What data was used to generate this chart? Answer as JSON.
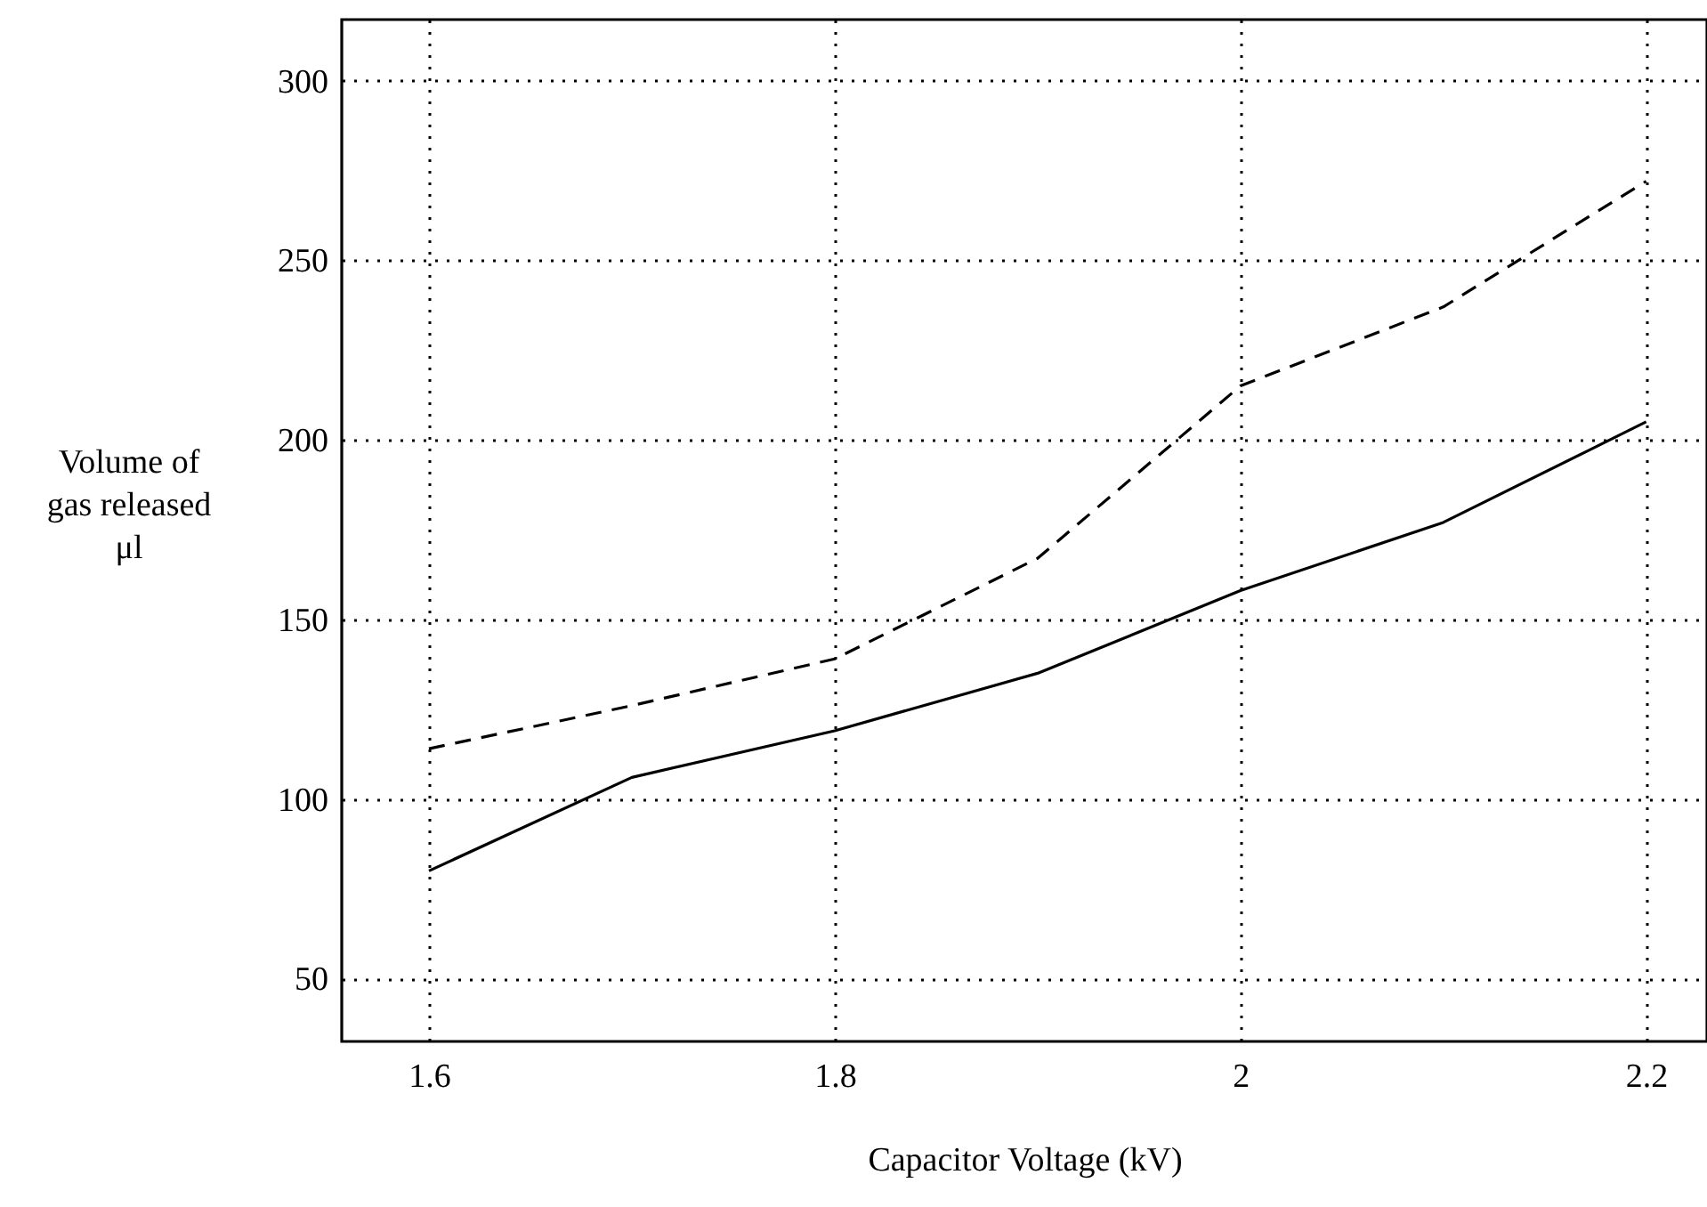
{
  "chart_data": {
    "type": "line",
    "xlabel": "Capacitor Voltage (kV)",
    "ylabel": "Volume of\ngas released\nμl",
    "x": [
      1.6,
      1.7,
      1.8,
      1.9,
      2.0,
      2.1,
      2.2
    ],
    "series": [
      {
        "color": "#000000",
        "line_style": "solid",
        "values": [
          80,
          106,
          119,
          135,
          158,
          177,
          205
        ]
      },
      {
        "color": "#000000",
        "line_style": "dashed",
        "values": [
          114,
          126,
          139,
          167,
          215,
          237,
          272
        ]
      }
    ],
    "xlim": [
      1.557,
      2.23
    ],
    "ylim": [
      32.5,
      317
    ],
    "xticks": [
      1.6,
      1.8,
      2,
      2.2
    ],
    "yticks": [
      50,
      100,
      150,
      200,
      250,
      300
    ],
    "grid": true,
    "marker": "none"
  }
}
